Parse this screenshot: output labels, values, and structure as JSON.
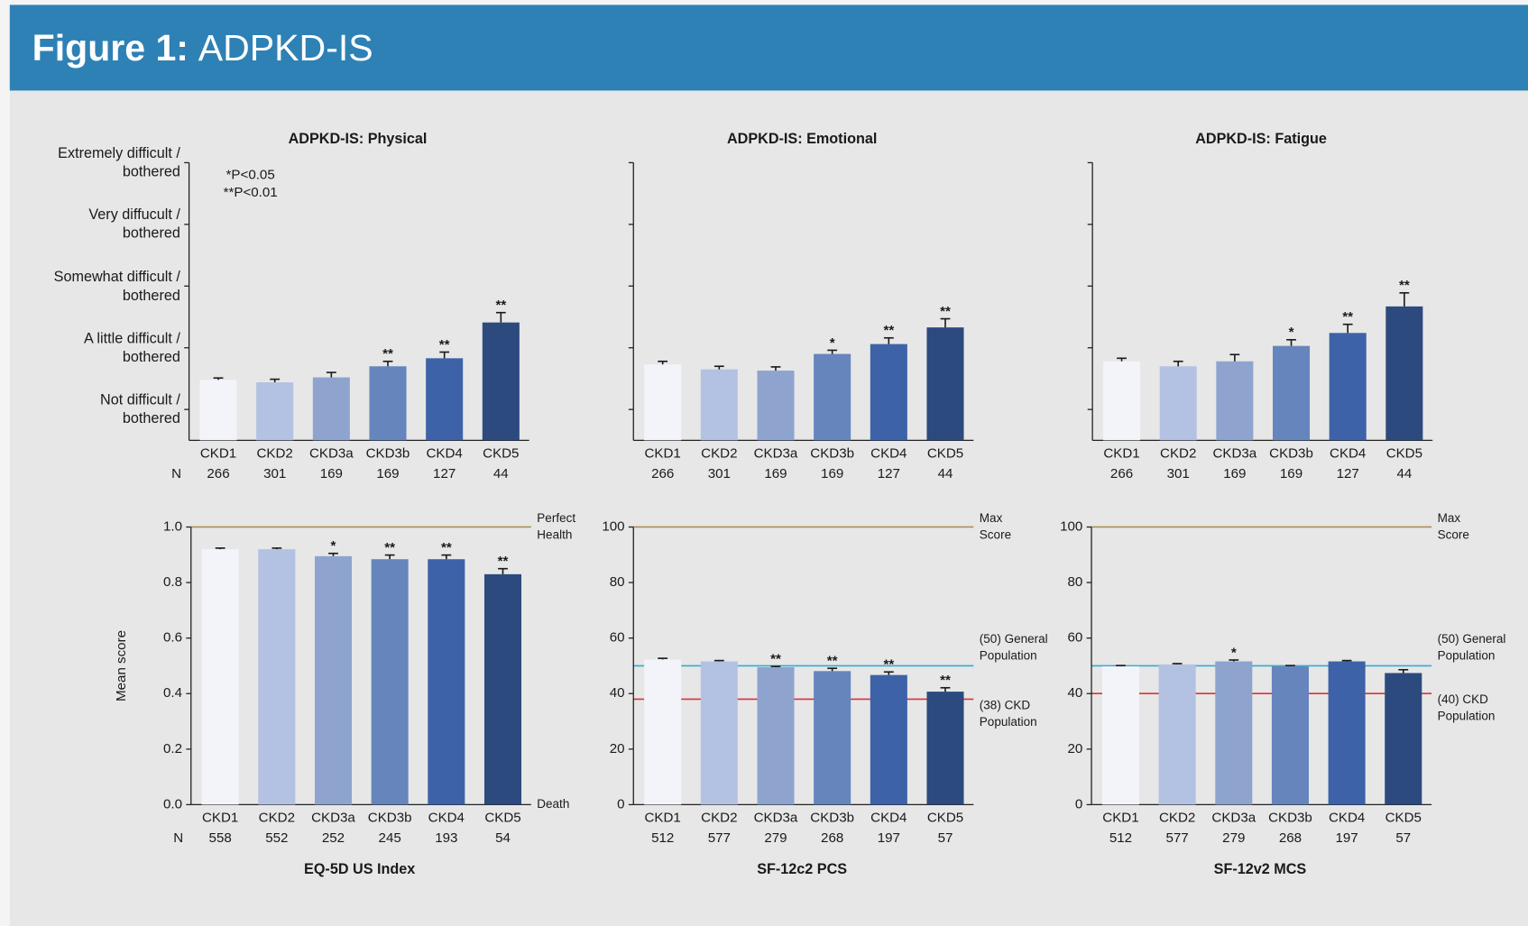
{
  "figure": {
    "label": "Figure 1:",
    "title": "ADPKD-IS"
  },
  "chart_data": [
    {
      "type": "bar",
      "title": "ADPKD-IS: Physical",
      "categories": [
        "CKD1",
        "CKD2",
        "CKD3a",
        "CKD3b",
        "CKD4",
        "CKD5"
      ],
      "n_label": "N",
      "n": [
        266,
        301,
        169,
        169,
        127,
        44
      ],
      "values": [
        1.48,
        1.44,
        1.52,
        1.7,
        1.83,
        2.41
      ],
      "errors": [
        0.03,
        0.05,
        0.08,
        0.08,
        0.1,
        0.16
      ],
      "significance": [
        null,
        null,
        null,
        "**",
        "**",
        "**"
      ],
      "colors": [
        "#f2f4f9",
        "#b3c2e2",
        "#8ea4cf",
        "#6685bc",
        "#3d62a8",
        "#2c4a7e"
      ],
      "ylim": [
        0.5,
        5
      ],
      "yticks": [
        {
          "value": 1,
          "label": "Not difficult /\nbothered"
        },
        {
          "value": 2,
          "label": "A little difficult /\nbothered"
        },
        {
          "value": 3,
          "label": "Somewhat difficult /\nbothered"
        },
        {
          "value": 4,
          "label": "Very diffucult /\nbothered"
        },
        {
          "value": 5,
          "label": "Extremely difficult /\nbothered"
        }
      ],
      "annotations": [
        "*P<0.05",
        "**P<0.01"
      ]
    },
    {
      "type": "bar",
      "title": "ADPKD-IS: Emotional",
      "categories": [
        "CKD1",
        "CKD2",
        "CKD3a",
        "CKD3b",
        "CKD4",
        "CKD5"
      ],
      "n": [
        266,
        301,
        169,
        169,
        127,
        44
      ],
      "values": [
        1.73,
        1.65,
        1.63,
        1.9,
        2.06,
        2.33
      ],
      "errors": [
        0.05,
        0.05,
        0.06,
        0.06,
        0.1,
        0.14
      ],
      "significance": [
        null,
        null,
        null,
        "*",
        "**",
        "**"
      ],
      "colors": [
        "#f2f4f9",
        "#b3c2e2",
        "#8ea4cf",
        "#6685bc",
        "#3d62a8",
        "#2c4a7e"
      ],
      "ylim": [
        0.5,
        5
      ],
      "yticks": [
        1,
        2,
        3,
        4,
        5
      ],
      "ytick_labels": false
    },
    {
      "type": "bar",
      "title": "ADPKD-IS: Fatigue",
      "categories": [
        "CKD1",
        "CKD2",
        "CKD3a",
        "CKD3b",
        "CKD4",
        "CKD5"
      ],
      "n": [
        266,
        301,
        169,
        169,
        127,
        44
      ],
      "values": [
        1.78,
        1.7,
        1.78,
        2.03,
        2.24,
        2.67
      ],
      "errors": [
        0.05,
        0.08,
        0.11,
        0.1,
        0.14,
        0.22
      ],
      "significance": [
        null,
        null,
        null,
        "*",
        "**",
        "**"
      ],
      "colors": [
        "#f2f4f9",
        "#b3c2e2",
        "#8ea4cf",
        "#6685bc",
        "#3d62a8",
        "#2c4a7e"
      ],
      "ylim": [
        0.5,
        5
      ],
      "yticks": [
        1,
        2,
        3,
        4,
        5
      ],
      "ytick_labels": false
    },
    {
      "type": "bar",
      "xlabel": "EQ-5D US Index",
      "ylabel": "Mean score",
      "categories": [
        "CKD1",
        "CKD2",
        "CKD3a",
        "CKD3b",
        "CKD4",
        "CKD5"
      ],
      "n_label": "N",
      "n": [
        558,
        552,
        252,
        245,
        193,
        54
      ],
      "values": [
        0.92,
        0.92,
        0.895,
        0.884,
        0.884,
        0.83
      ],
      "errors": [
        0.004,
        0.004,
        0.01,
        0.015,
        0.015,
        0.02
      ],
      "significance": [
        null,
        null,
        "*",
        "**",
        "**",
        "**"
      ],
      "colors": [
        "#f2f4f9",
        "#b3c2e2",
        "#8ea4cf",
        "#6685bc",
        "#3d62a8",
        "#2c4a7e"
      ],
      "ylim": [
        0,
        1
      ],
      "yticks": [
        {
          "value": 0,
          "label": "0.0"
        },
        0.2,
        0.4,
        0.6,
        0.8,
        {
          "value": 1,
          "label": "1.0"
        }
      ],
      "reference_lines": [
        {
          "value": 1,
          "label": "Perfect\nHealth",
          "color": "#a89058"
        }
      ],
      "bottom_label": "Death"
    },
    {
      "type": "bar",
      "xlabel": "SF-12c2 PCS",
      "categories": [
        "CKD1",
        "CKD2",
        "CKD3a",
        "CKD3b",
        "CKD4",
        "CKD5"
      ],
      "n": [
        512,
        577,
        279,
        268,
        197,
        57
      ],
      "values": [
        52.3,
        51.6,
        49.5,
        48.1,
        46.7,
        40.7
      ],
      "errors": [
        0.4,
        0.3,
        0.3,
        1,
        1.1,
        1.4
      ],
      "significance": [
        null,
        null,
        "**",
        "**",
        "**",
        "**"
      ],
      "colors": [
        "#f2f4f9",
        "#b3c2e2",
        "#8ea4cf",
        "#6685bc",
        "#3d62a8",
        "#2c4a7e"
      ],
      "ylim": [
        0,
        100
      ],
      "yticks": [
        0,
        20,
        40,
        60,
        80,
        100
      ],
      "reference_lines": [
        {
          "value": 100,
          "label": "Max\nScore",
          "color": "#a89058"
        },
        {
          "value": 50,
          "label": "(50) General\nPopulation",
          "color": "#35a9d6"
        },
        {
          "value": 38,
          "label": "(38) CKD\nPopulation",
          "color": "#e0303a"
        }
      ]
    },
    {
      "type": "bar",
      "xlabel": "SF-12v2 MCS",
      "categories": [
        "CKD1",
        "CKD2",
        "CKD3a",
        "CKD3b",
        "CKD4",
        "CKD5"
      ],
      "n": [
        512,
        577,
        279,
        268,
        197,
        57
      ],
      "values": [
        49.8,
        50.5,
        51.6,
        49.8,
        51.6,
        47.4
      ],
      "errors": [
        0.3,
        0.3,
        0.5,
        0.3,
        0.3,
        1.2
      ],
      "significance": [
        null,
        null,
        "*",
        null,
        null,
        null
      ],
      "colors": [
        "#f2f4f9",
        "#b3c2e2",
        "#8ea4cf",
        "#6685bc",
        "#3d62a8",
        "#2c4a7e"
      ],
      "ylim": [
        0,
        100
      ],
      "yticks": [
        0,
        20,
        40,
        60,
        80,
        100
      ],
      "reference_lines": [
        {
          "value": 100,
          "label": "Max\nScore",
          "color": "#a89058"
        },
        {
          "value": 50,
          "label": "(50) General\nPopulation",
          "color": "#35a9d6"
        },
        {
          "value": 40,
          "label": "(40) CKD\nPopulation",
          "color": "#e0303a"
        }
      ]
    }
  ]
}
